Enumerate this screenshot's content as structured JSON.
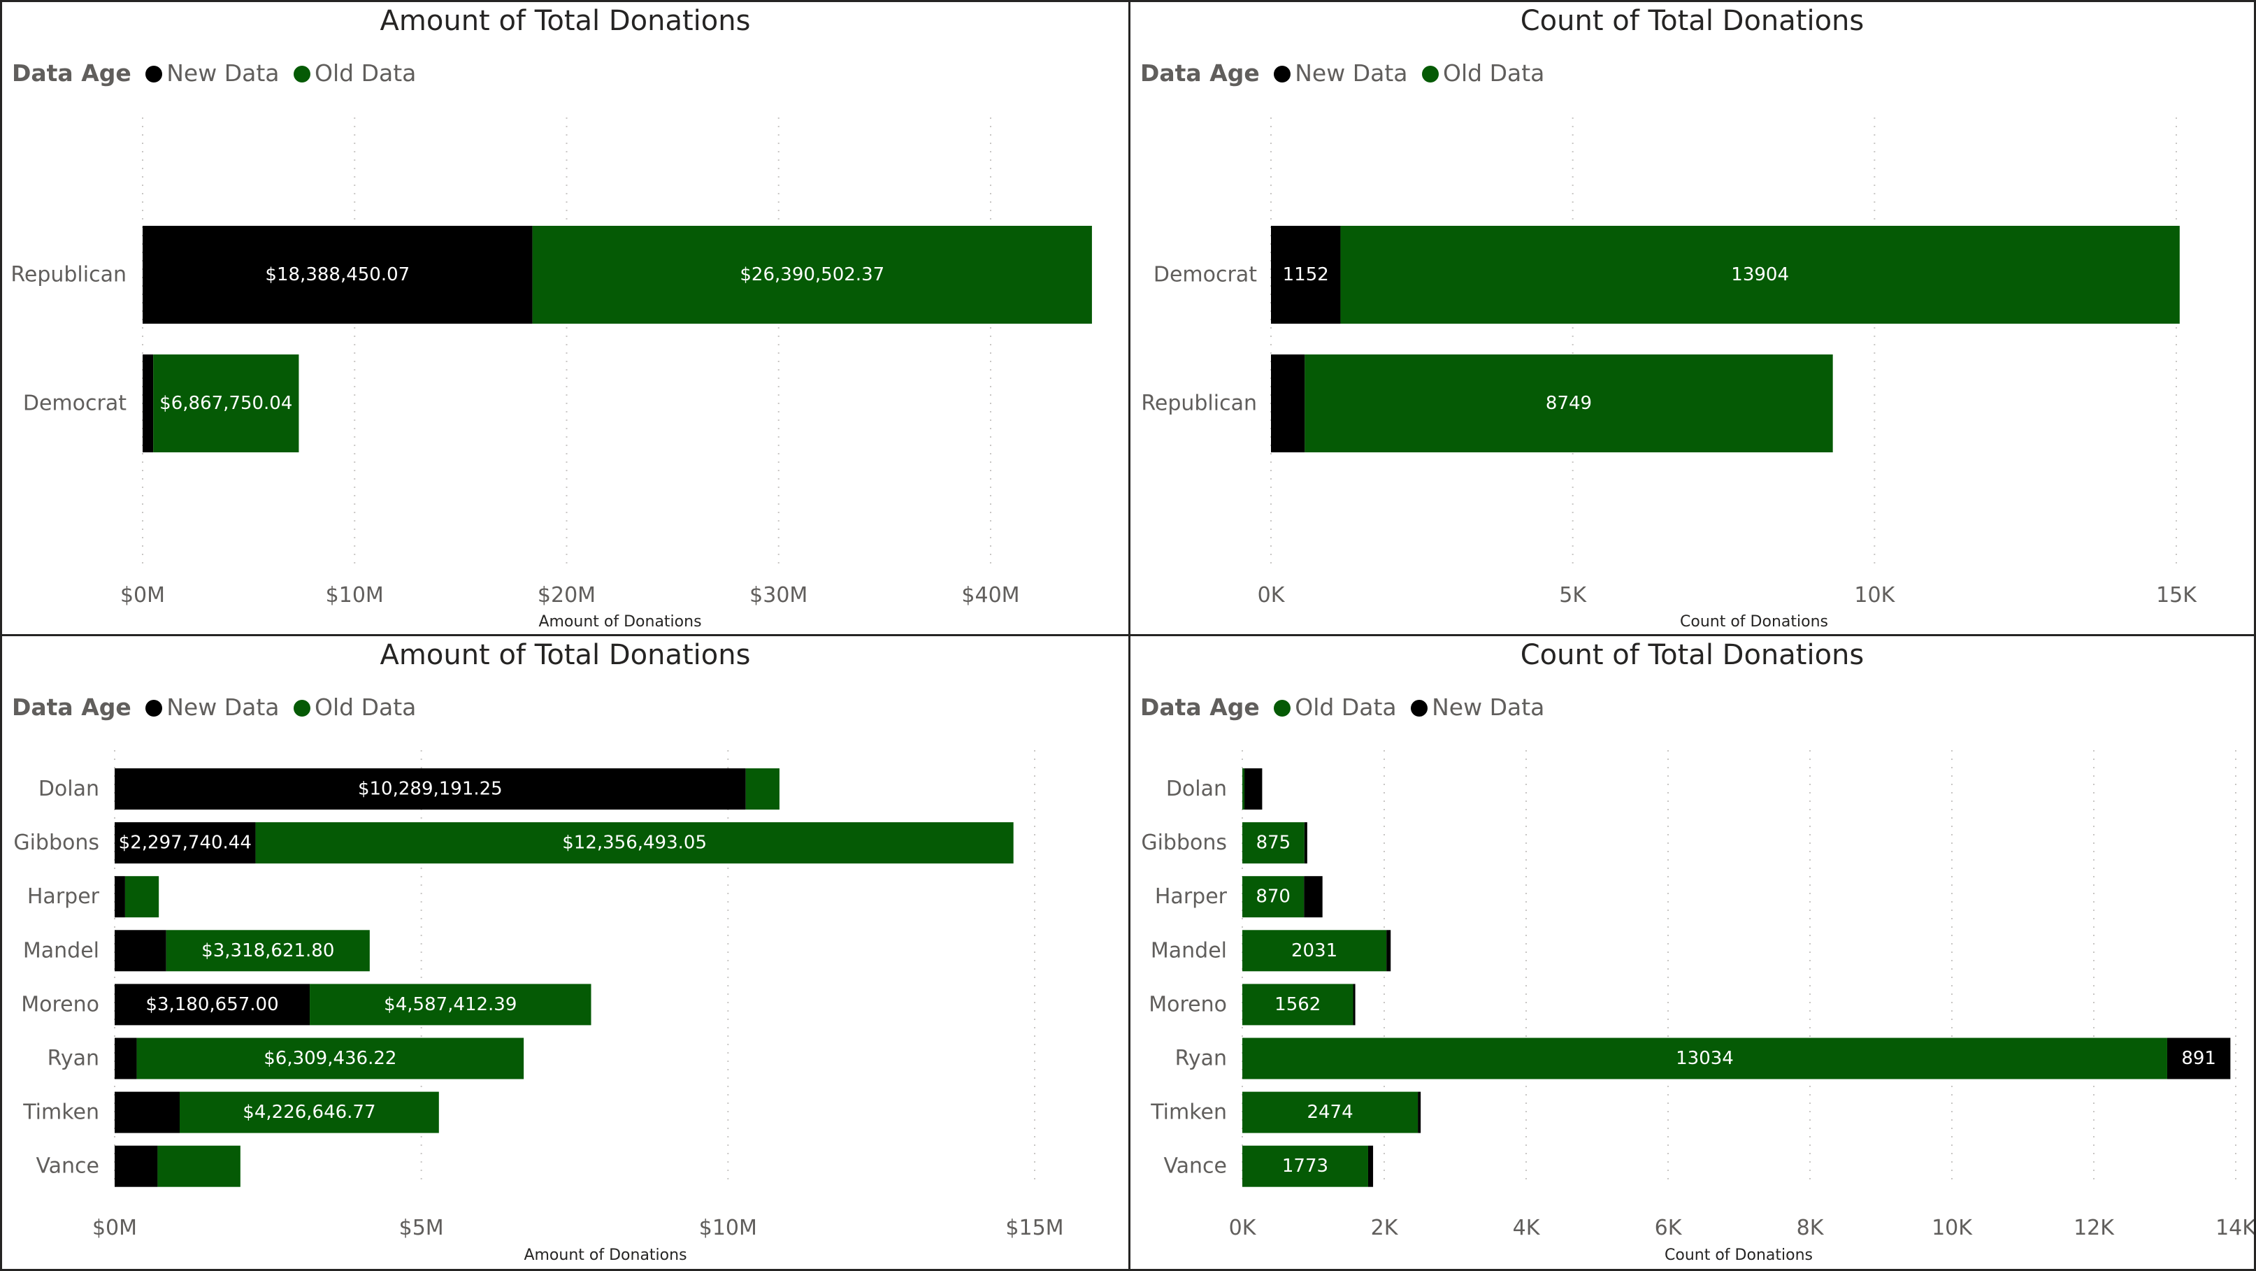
{
  "colors": {
    "new_data": "#000000",
    "old_data": "#055a05",
    "grid": "#c8c6c4"
  },
  "chart_data": [
    {
      "type": "bar",
      "orientation": "horizontal",
      "stacked": true,
      "title": "Amount of Total Donations",
      "legend_title": "Data Age",
      "legend_position": "top-left",
      "xlabel": "Amount of Donations",
      "xlim": [
        0,
        45000000
      ],
      "xticks": [
        0,
        10000000,
        20000000,
        30000000,
        40000000
      ],
      "xtick_labels": [
        "$0M",
        "$10M",
        "$20M",
        "$30M",
        "$40M"
      ],
      "categories": [
        "Republican",
        "Democrat"
      ],
      "series": [
        {
          "name": "New Data",
          "values": [
            18388450.07,
            500000
          ],
          "data_labels": [
            "$18,388,450.07",
            ""
          ]
        },
        {
          "name": "Old Data",
          "values": [
            26390502.37,
            6867750.04
          ],
          "data_labels": [
            "$26,390,502.37",
            "$6,867,750.04"
          ]
        }
      ]
    },
    {
      "type": "bar",
      "orientation": "horizontal",
      "stacked": true,
      "title": "Count of Total Donations",
      "legend_title": "Data Age",
      "legend_position": "top-left",
      "xlabel": "Count of Donations",
      "xlim": [
        0,
        15000
      ],
      "xticks": [
        0,
        5000,
        10000,
        15000
      ],
      "xtick_labels": [
        "0K",
        "5K",
        "10K",
        "15K"
      ],
      "categories": [
        "Democrat",
        "Republican"
      ],
      "series": [
        {
          "name": "New Data",
          "values": [
            1152,
            560
          ],
          "data_labels": [
            "1152",
            ""
          ]
        },
        {
          "name": "Old Data",
          "values": [
            13904,
            8749
          ],
          "data_labels": [
            "13904",
            "8749"
          ]
        }
      ]
    },
    {
      "type": "bar",
      "orientation": "horizontal",
      "stacked": true,
      "title": "Amount of Total Donations",
      "legend_title": "Data Age",
      "legend_position": "top-left",
      "xlabel": "Amount of Donations",
      "xlim": [
        0,
        16000000
      ],
      "xticks": [
        0,
        5000000,
        10000000,
        15000000
      ],
      "xtick_labels": [
        "$0M",
        "$5M",
        "$10M",
        "$15M"
      ],
      "categories": [
        "Dolan",
        "Gibbons",
        "Harper",
        "Mandel",
        "Moreno",
        "Ryan",
        "Timken",
        "Vance"
      ],
      "series": [
        {
          "name": "New Data",
          "values": [
            10289191.25,
            2297740.44,
            170000,
            840000,
            3180657.0,
            360000,
            1060000,
            700000
          ],
          "data_labels": [
            "$10,289,191.25",
            "$2,297,740.44",
            "",
            "",
            "$3,180,657.00",
            "",
            "",
            ""
          ]
        },
        {
          "name": "Old Data",
          "values": [
            550000,
            12356493.05,
            550000,
            3318621.8,
            4587412.39,
            6309436.22,
            4226646.77,
            1350000
          ],
          "data_labels": [
            "",
            "$12,356,493.05",
            "",
            "$3,318,621.80",
            "$4,587,412.39",
            "$6,309,436.22",
            "$4,226,646.77",
            ""
          ]
        }
      ]
    },
    {
      "type": "bar",
      "orientation": "horizontal",
      "stacked": true,
      "title": "Count of Total Donations",
      "legend_title": "Data Age",
      "legend_position": "top-left",
      "xlabel": "Count of Donations",
      "xlim": [
        0,
        14000
      ],
      "xticks": [
        0,
        2000,
        4000,
        6000,
        8000,
        10000,
        12000,
        14000
      ],
      "xtick_labels": [
        "0K",
        "2K",
        "4K",
        "6K",
        "8K",
        "10K",
        "12K",
        "14K"
      ],
      "categories": [
        "Dolan",
        "Gibbons",
        "Harper",
        "Mandel",
        "Moreno",
        "Ryan",
        "Timken",
        "Vance"
      ],
      "series": [
        {
          "name": "Old Data",
          "values": [
            30,
            875,
            870,
            2031,
            1562,
            13034,
            2474,
            1773
          ],
          "data_labels": [
            "",
            "875",
            "870",
            "2031",
            "1562",
            "13034",
            "2474",
            "1773"
          ]
        },
        {
          "name": "New Data",
          "values": [
            250,
            40,
            260,
            60,
            30,
            891,
            40,
            70
          ],
          "data_labels": [
            "",
            "",
            "",
            "",
            "",
            "891",
            "",
            ""
          ]
        }
      ]
    }
  ]
}
